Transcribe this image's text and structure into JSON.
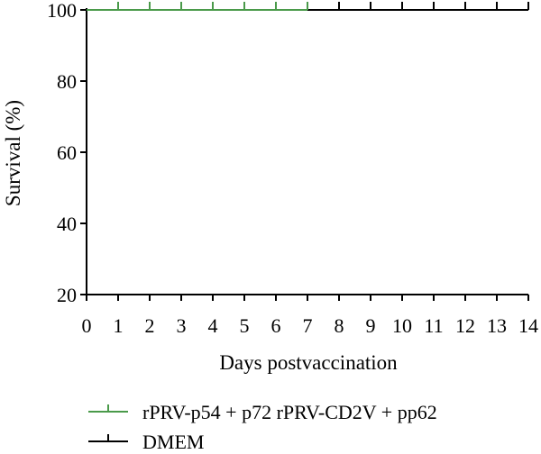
{
  "chart_data": {
    "type": "line",
    "title": "",
    "xlabel": "Days postvaccination",
    "ylabel": "Survival (%)",
    "xlim": [
      0,
      14
    ],
    "ylim": [
      20,
      100
    ],
    "x_ticks": [
      "0",
      "1",
      "2",
      "3",
      "4",
      "5",
      "6",
      "7",
      "8",
      "9",
      "10",
      "11",
      "12",
      "13",
      "14"
    ],
    "y_ticks": [
      "20",
      "40",
      "60",
      "80",
      "100"
    ],
    "grid": false,
    "legend_position": "bottom",
    "series": [
      {
        "name": "rPRV-p54 + p72 rPRV-CD2V + pp62",
        "color": "#4a9a4a",
        "x": [
          0,
          7
        ],
        "y": [
          100,
          100
        ],
        "censor_x": [
          1,
          2,
          3,
          4,
          5,
          6,
          7
        ]
      },
      {
        "name": "DMEM",
        "color": "#000000",
        "x": [
          0,
          14
        ],
        "y": [
          100,
          100
        ],
        "censor_x": [
          1,
          2,
          3,
          4,
          5,
          6,
          7,
          8,
          9,
          10,
          11,
          12,
          13,
          14
        ]
      }
    ]
  }
}
